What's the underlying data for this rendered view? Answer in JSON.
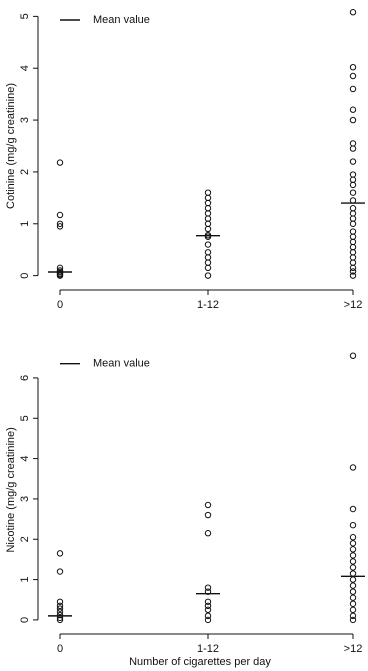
{
  "chart_data": [
    {
      "type": "strip",
      "y_label": "Cotinine (mg/g creatinine)",
      "legend": "Mean value",
      "categories": [
        "0",
        "1-12",
        ">12"
      ],
      "points": [
        [
          2.18,
          1.17,
          1.0,
          0.95,
          0.15,
          0.1,
          0.07,
          0.04,
          0.02,
          0.0
        ],
        [
          1.6,
          1.5,
          1.4,
          1.3,
          1.2,
          1.1,
          1.0,
          0.9,
          0.78,
          0.75,
          0.6,
          0.45,
          0.35,
          0.25,
          0.15,
          0.0
        ],
        [
          5.08,
          4.02,
          3.85,
          3.6,
          3.2,
          3.0,
          2.55,
          2.45,
          2.2,
          1.95,
          1.85,
          1.75,
          1.6,
          1.45,
          1.3,
          1.2,
          1.1,
          1.0,
          0.85,
          0.75,
          0.65,
          0.55,
          0.45,
          0.35,
          0.25,
          0.15,
          0.08,
          0.0
        ]
      ],
      "means": [
        0.07,
        0.77,
        1.4
      ],
      "ylim": [
        -0.2,
        5.2
      ],
      "yticks": [
        0,
        1,
        2,
        3,
        4,
        5
      ]
    },
    {
      "type": "strip",
      "y_label": "Nicotine (mg/g creatinine)",
      "legend": "Mean value",
      "x_label": "Number of cigarettes per day",
      "categories": [
        "0",
        "1-12",
        ">12"
      ],
      "points": [
        [
          1.65,
          1.2,
          0.45,
          0.35,
          0.28,
          0.2,
          0.12,
          0.05,
          0.0
        ],
        [
          2.85,
          2.6,
          2.15,
          0.8,
          0.7,
          0.45,
          0.35,
          0.25,
          0.1,
          0.0
        ],
        [
          6.55,
          3.78,
          2.75,
          2.35,
          2.05,
          1.9,
          1.75,
          1.6,
          1.45,
          1.3,
          1.15,
          1.0,
          0.85,
          0.7,
          0.55,
          0.4,
          0.25,
          0.1,
          0.0
        ]
      ],
      "means": [
        0.1,
        0.65,
        1.08
      ],
      "ylim": [
        -0.25,
        6.7
      ],
      "yticks": [
        0,
        1,
        2,
        3,
        4,
        5,
        6
      ]
    }
  ]
}
